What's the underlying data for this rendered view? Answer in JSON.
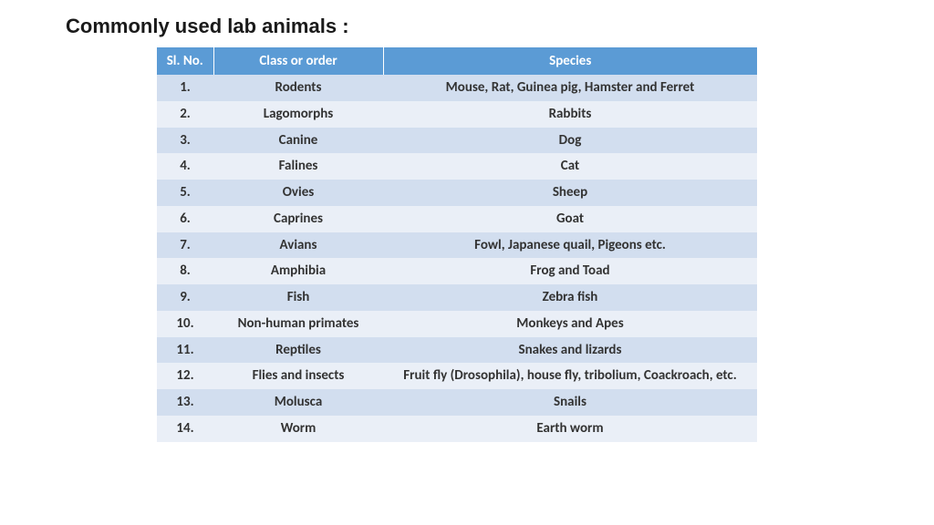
{
  "title": "Commonly used lab animals :",
  "table": {
    "header_bg": "#5b9bd5",
    "header_fg": "#ffffff",
    "row_odd_bg": "#d2deef",
    "row_even_bg": "#eaeff7",
    "columns": [
      "Sl. No.",
      "Class or order",
      "Species"
    ],
    "rows": [
      [
        "1.",
        "Rodents",
        "Mouse, Rat, Guinea pig, Hamster and Ferret"
      ],
      [
        "2.",
        "Lagomorphs",
        "Rabbits"
      ],
      [
        "3.",
        "Canine",
        "Dog"
      ],
      [
        "4.",
        "Falines",
        "Cat"
      ],
      [
        "5.",
        "Ovies",
        "Sheep"
      ],
      [
        "6.",
        "Caprines",
        "Goat"
      ],
      [
        "7.",
        "Avians",
        "Fowl, Japanese quail, Pigeons etc."
      ],
      [
        "8.",
        "Amphibia",
        "Frog and Toad"
      ],
      [
        "9.",
        "Fish",
        "Zebra fish"
      ],
      [
        "10.",
        "Non-human primates",
        "Monkeys and Apes"
      ],
      [
        "11.",
        "Reptiles",
        "Snakes and lizards"
      ],
      [
        "12.",
        "Flies and insects",
        "Fruit fly (Drosophila), house fly, tribolium, Coackroach, etc."
      ],
      [
        "13.",
        "Molusca",
        "Snails"
      ],
      [
        "14.",
        "Worm",
        "Earth worm"
      ]
    ]
  }
}
